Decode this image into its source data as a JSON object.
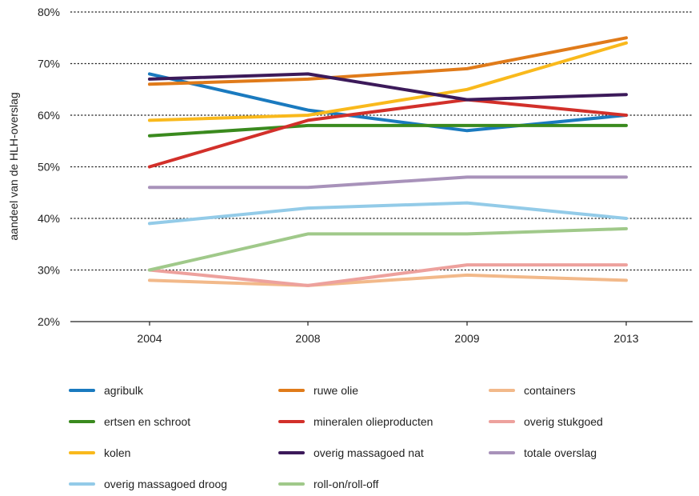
{
  "chart_data": {
    "type": "line",
    "ylabel": "aandeel van de HLH-overslag",
    "categories": [
      "2004",
      "2008",
      "2009",
      "2013"
    ],
    "ylim": [
      20,
      80
    ],
    "yticks": [
      20,
      30,
      40,
      50,
      60,
      70,
      80
    ],
    "ytick_labels": [
      "20%",
      "30%",
      "40%",
      "50%",
      "60%",
      "70%",
      "80%"
    ],
    "grid": true,
    "legend_position": "bottom",
    "series": [
      {
        "name": "agribulk",
        "color": "#1a7abf",
        "values": [
          68,
          61,
          57,
          60
        ]
      },
      {
        "name": "ruwe olie",
        "color": "#e07b1a",
        "values": [
          66,
          67,
          69,
          75
        ]
      },
      {
        "name": "containers",
        "color": "#f2b98a",
        "values": [
          28,
          27,
          29,
          28
        ]
      },
      {
        "name": "ertsen en schroot",
        "color": "#3a8a1e",
        "values": [
          56,
          58,
          58,
          58
        ]
      },
      {
        "name": "mineralen olieproducten",
        "color": "#d2302a",
        "values": [
          50,
          59,
          63,
          60
        ]
      },
      {
        "name": "overig stukgoed",
        "color": "#eda19d",
        "values": [
          30,
          27,
          31,
          31
        ]
      },
      {
        "name": "kolen",
        "color": "#f9b91c",
        "values": [
          59,
          60,
          65,
          74
        ]
      },
      {
        "name": "overig massagoed nat",
        "color": "#3c1a5a",
        "values": [
          67,
          68,
          63,
          64
        ]
      },
      {
        "name": "totale overslag",
        "color": "#a892ba",
        "values": [
          46,
          46,
          48,
          48
        ]
      },
      {
        "name": "overig massagoed droog",
        "color": "#93cbe8",
        "values": [
          39,
          42,
          43,
          40
        ]
      },
      {
        "name": "roll-on/roll-off",
        "color": "#a0c98a",
        "values": [
          30,
          37,
          37,
          38
        ]
      }
    ]
  }
}
